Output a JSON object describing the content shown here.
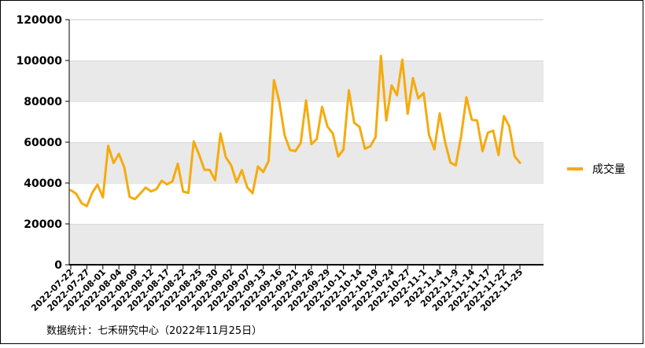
{
  "chart_data": {
    "type": "line",
    "title": "",
    "xlabel": "",
    "ylabel": "",
    "ylim": [
      0,
      120000
    ],
    "yticks": [
      0,
      20000,
      40000,
      60000,
      80000,
      100000,
      120000
    ],
    "ytick_labels": [
      "0",
      "20000",
      "40000",
      "60000",
      "80000",
      "100000",
      "120000"
    ],
    "grid": "horizontal bands (alternating grey/white)",
    "legend_position": "right",
    "series": [
      {
        "name": "成交量",
        "color": "#f5ab0e",
        "values": [
          36500,
          34800,
          30200,
          28700,
          35200,
          39200,
          33000,
          58200,
          49800,
          54300,
          47600,
          33200,
          32100,
          34900,
          37800,
          35900,
          37000,
          41100,
          39400,
          40800,
          49500,
          35800,
          35200,
          60400,
          53900,
          46500,
          46400,
          41300,
          64300,
          52600,
          48700,
          40400,
          46300,
          37900,
          35000,
          48100,
          45400,
          50800,
          90400,
          79800,
          63300,
          56200,
          55600,
          59600,
          80500,
          59000,
          61500,
          77300,
          67700,
          64300,
          53000,
          56400,
          85400,
          69500,
          67500,
          56800,
          58000,
          62500,
          102200,
          70600,
          87800,
          83000,
          100400,
          73900,
          91400,
          81500,
          84100,
          63600,
          56500,
          74100,
          60100,
          50000,
          48600,
          62900,
          82000,
          71000,
          70600,
          55600,
          64600,
          65700,
          53700,
          72800,
          67800,
          53100,
          49900
        ]
      }
    ],
    "x_tick_labels": [
      "2022-07-22",
      "2022-07-27",
      "2022-08-01",
      "2022-08-04",
      "2022-08-09",
      "2022-08-12",
      "2022-08-17",
      "2022-08-22",
      "2022-08-25",
      "2022-08-30",
      "2022-09-02",
      "2022-09-07",
      "2022-09-13",
      "2022-09-16",
      "2022-09-21",
      "2022-09-26",
      "2022-09-29",
      "2022-10-11",
      "2022-10-14",
      "2022-10-19",
      "2022-10-24",
      "2022-10-27",
      "2022-11-1",
      "2022-11-4",
      "2022-11-9",
      "2022-11-14",
      "2022-11-17",
      "2022-11-22",
      "2022-11-25"
    ]
  },
  "source_text": "数据统计：七禾研究中心（2022年11月25日）"
}
